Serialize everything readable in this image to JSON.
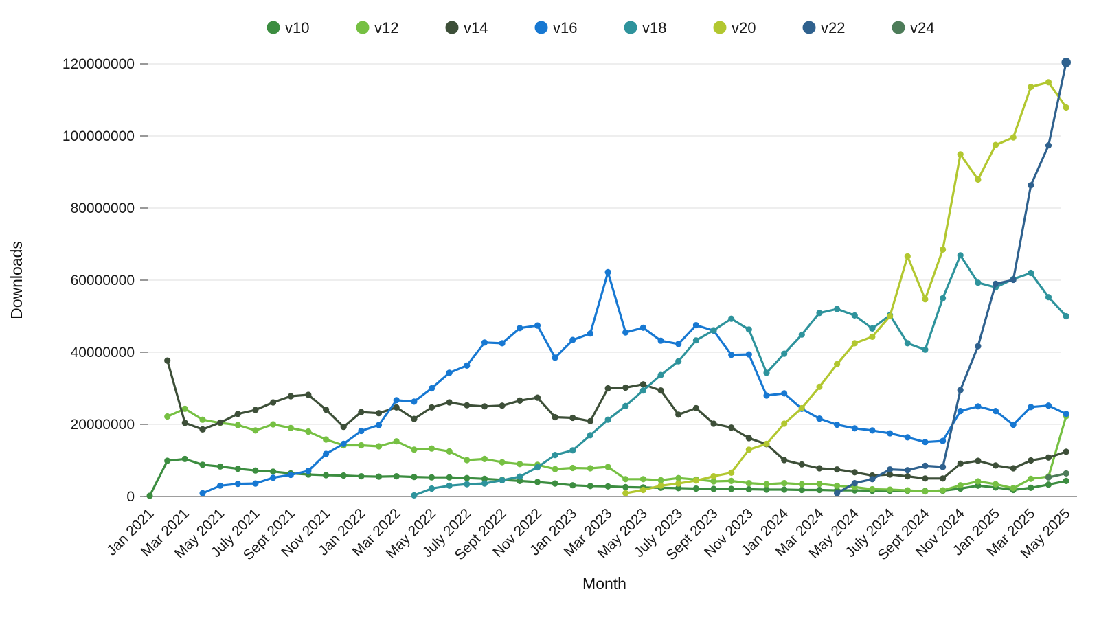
{
  "chart_data": {
    "type": "line",
    "title": "",
    "xlabel": "Month",
    "ylabel": "Downloads",
    "legend_position": "top-center",
    "grid": "horizontal",
    "ylim": [
      0,
      120000000
    ],
    "y_ticks": [
      0,
      20000000,
      40000000,
      60000000,
      80000000,
      100000000,
      120000000
    ],
    "y_tick_labels": [
      "0",
      "20000000",
      "40000000",
      "60000000",
      "80000000",
      "100000000",
      "120000000"
    ],
    "x_tick_labels": [
      "Jan 2021",
      "Mar 2021",
      "May 2021",
      "July 2021",
      "Sept 2021",
      "Nov 2021",
      "Jan 2022",
      "Mar 2022",
      "May 2022",
      "July 2022",
      "Sept 2022",
      "Nov 2022",
      "Jan 2023",
      "Mar 2023",
      "May 2023",
      "July 2023",
      "Sept 2023",
      "Nov 2023",
      "Jan 2024",
      "Mar 2024",
      "May 2024",
      "July 2024",
      "Sept 2024",
      "Nov 2024",
      "Jan 2025",
      "Mar 2025",
      "May 2025"
    ],
    "categories": [
      "Jan 2021",
      "Feb 2021",
      "Mar 2021",
      "Apr 2021",
      "May 2021",
      "June 2021",
      "July 2021",
      "Aug 2021",
      "Sept 2021",
      "Oct 2021",
      "Nov 2021",
      "Dec 2021",
      "Jan 2022",
      "Feb 2022",
      "Mar 2022",
      "Apr 2022",
      "May 2022",
      "June 2022",
      "July 2022",
      "Aug 2022",
      "Sept 2022",
      "Oct 2022",
      "Nov 2022",
      "Dec 2022",
      "Jan 2023",
      "Feb 2023",
      "Mar 2023",
      "Apr 2023",
      "May 2023",
      "June 2023",
      "July 2023",
      "Aug 2023",
      "Sept 2023",
      "Oct 2023",
      "Nov 2023",
      "Dec 2023",
      "Jan 2024",
      "Feb 2024",
      "Mar 2024",
      "Apr 2024",
      "May 2024",
      "June 2024",
      "July 2024",
      "Aug 2024",
      "Sept 2024",
      "Oct 2024",
      "Nov 2024",
      "Dec 2024",
      "Jan 2025",
      "Feb 2025",
      "Mar 2025",
      "Apr 2025",
      "May 2025"
    ],
    "series": [
      {
        "name": "v10",
        "color": "#3c8d40",
        "values": [
          200000,
          9900000,
          10400000,
          8800000,
          8300000,
          7700000,
          7200000,
          6900000,
          6400000,
          6100000,
          5900000,
          5800000,
          5600000,
          5500000,
          5600000,
          5400000,
          5300000,
          5300000,
          5100000,
          4900000,
          4600000,
          4300000,
          4000000,
          3600000,
          3100000,
          2900000,
          2800000,
          2600000,
          2500000,
          2400000,
          2300000,
          2200000,
          2100000,
          2100000,
          2000000,
          1900000,
          1900000,
          1800000,
          1800000,
          1700000,
          1700000,
          1600000,
          1600000,
          1600000,
          1500000,
          1600000,
          2200000,
          3000000,
          2500000,
          1800000,
          2400000,
          3300000,
          4300000
        ]
      },
      {
        "name": "v12",
        "color": "#76c043",
        "values": [
          null,
          22200000,
          24300000,
          21300000,
          20400000,
          19800000,
          18300000,
          20000000,
          19000000,
          18000000,
          15800000,
          14200000,
          14200000,
          13900000,
          15300000,
          13000000,
          13300000,
          12500000,
          10100000,
          10400000,
          9500000,
          9000000,
          8800000,
          7600000,
          7900000,
          7800000,
          8200000,
          4800000,
          4800000,
          4500000,
          5100000,
          4700000,
          4200000,
          4300000,
          3700000,
          3400000,
          3700000,
          3400000,
          3500000,
          3000000,
          2600000,
          2000000,
          1900000,
          1700000,
          1400000,
          1700000,
          3100000,
          4200000,
          3400000,
          2300000,
          4900000,
          5500000,
          22300000
        ]
      },
      {
        "name": "v14",
        "color": "#3d4f38",
        "values": [
          null,
          37700000,
          20400000,
          18600000,
          20500000,
          22900000,
          24000000,
          26100000,
          27800000,
          28200000,
          24100000,
          19300000,
          23400000,
          23100000,
          24700000,
          21500000,
          24700000,
          26100000,
          25300000,
          25000000,
          25200000,
          26600000,
          27400000,
          22000000,
          21800000,
          20900000,
          30000000,
          30200000,
          31100000,
          29400000,
          22700000,
          24500000,
          20200000,
          19100000,
          16200000,
          14500000,
          10100000,
          8900000,
          7800000,
          7500000,
          6700000,
          5800000,
          6100000,
          5600000,
          5000000,
          5000000,
          9100000,
          9900000,
          8600000,
          7800000,
          10000000,
          10800000,
          12400000
        ]
      },
      {
        "name": "v16",
        "color": "#1778d2",
        "values": [
          null,
          null,
          null,
          900000,
          3000000,
          3500000,
          3600000,
          5200000,
          6000000,
          7100000,
          11800000,
          14600000,
          18200000,
          19800000,
          26700000,
          26300000,
          30000000,
          34300000,
          36300000,
          42700000,
          42500000,
          46700000,
          47400000,
          38500000,
          43400000,
          45200000,
          62200000,
          45500000,
          46800000,
          43200000,
          42300000,
          47500000,
          46000000,
          39300000,
          39400000,
          28000000,
          28600000,
          24300000,
          21600000,
          19900000,
          18900000,
          18300000,
          17500000,
          16400000,
          15100000,
          15400000,
          23700000,
          25000000,
          23700000,
          19900000,
          24800000,
          25200000,
          22900000
        ]
      },
      {
        "name": "v18",
        "color": "#2e939c",
        "values": [
          null,
          null,
          null,
          null,
          null,
          null,
          null,
          null,
          null,
          null,
          null,
          null,
          null,
          null,
          null,
          300000,
          2200000,
          3000000,
          3400000,
          3600000,
          4500000,
          5500000,
          8100000,
          11500000,
          12800000,
          17000000,
          21300000,
          25100000,
          29400000,
          33700000,
          37500000,
          43300000,
          46100000,
          49300000,
          46300000,
          34300000,
          39600000,
          44900000,
          50900000,
          52000000,
          50200000,
          46600000,
          50300000,
          42500000,
          40700000,
          55000000,
          66900000,
          59300000,
          58000000,
          60300000,
          62000000,
          55300000,
          50000000
        ]
      },
      {
        "name": "v20",
        "color": "#b2c730",
        "values": [
          null,
          null,
          null,
          null,
          null,
          null,
          null,
          null,
          null,
          null,
          null,
          null,
          null,
          null,
          null,
          null,
          null,
          null,
          null,
          null,
          null,
          null,
          null,
          null,
          null,
          null,
          null,
          900000,
          1800000,
          3000000,
          3600000,
          4400000,
          5600000,
          6600000,
          13000000,
          14600000,
          20200000,
          24500000,
          30400000,
          36700000,
          42500000,
          44300000,
          50000000,
          66600000,
          54700000,
          68500000,
          94900000,
          87900000,
          97500000,
          99600000,
          113600000,
          114900000,
          107900000
        ]
      },
      {
        "name": "v22",
        "color": "#2f618e",
        "values": [
          null,
          null,
          null,
          null,
          null,
          null,
          null,
          null,
          null,
          null,
          null,
          null,
          null,
          null,
          null,
          null,
          null,
          null,
          null,
          null,
          null,
          null,
          null,
          null,
          null,
          null,
          null,
          null,
          null,
          null,
          null,
          null,
          null,
          null,
          null,
          null,
          null,
          null,
          null,
          900000,
          3700000,
          4800000,
          7500000,
          7300000,
          8500000,
          8200000,
          29500000,
          41700000,
          59000000,
          60100000,
          86300000,
          97400000,
          120400000
        ]
      },
      {
        "name": "v24",
        "color": "#4d7c59",
        "values": [
          null,
          null,
          null,
          null,
          null,
          null,
          null,
          null,
          null,
          null,
          null,
          null,
          null,
          null,
          null,
          null,
          null,
          null,
          null,
          null,
          null,
          null,
          null,
          null,
          null,
          null,
          null,
          null,
          null,
          null,
          null,
          null,
          null,
          null,
          null,
          null,
          null,
          null,
          null,
          null,
          null,
          null,
          null,
          null,
          null,
          null,
          null,
          null,
          null,
          null,
          null,
          5300000,
          6400000
        ]
      }
    ]
  },
  "legend": {
    "items": [
      {
        "label": "v10",
        "color": "#3c8d40"
      },
      {
        "label": "v12",
        "color": "#76c043"
      },
      {
        "label": "v14",
        "color": "#3d4f38"
      },
      {
        "label": "v16",
        "color": "#1778d2"
      },
      {
        "label": "v18",
        "color": "#2e939c"
      },
      {
        "label": "v20",
        "color": "#b2c730"
      },
      {
        "label": "v22",
        "color": "#2f618e"
      },
      {
        "label": "v24",
        "color": "#4d7c59"
      }
    ]
  },
  "colors": {
    "background": "#ffffff",
    "gridline": "#e3e3e3",
    "axis_line": "#7f7f7f",
    "tick_dash": "#999999",
    "text": "#1a1a1a"
  }
}
